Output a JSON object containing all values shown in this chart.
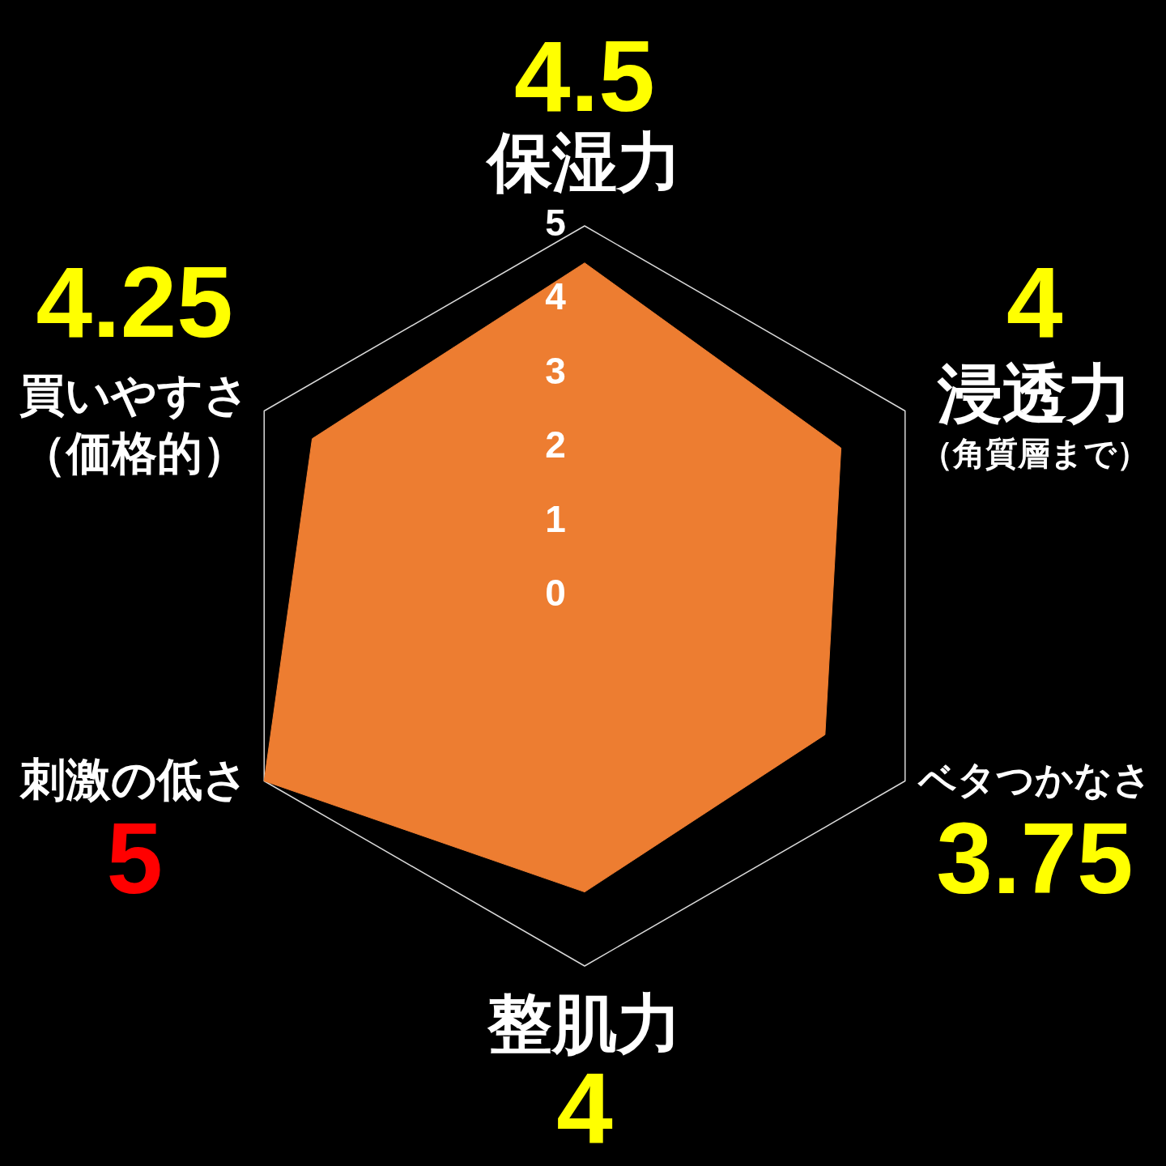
{
  "chart_data": {
    "type": "radar",
    "categories": [
      "保湿力",
      "浸透力（角質層まで）",
      "ベタつかなさ",
      "整肌力",
      "刺激の低さ",
      "買いやすさ（価格的）"
    ],
    "series": [
      {
        "color": "#ed7d31",
        "values": [
          4.5,
          4,
          3.75,
          4,
          5,
          4.25
        ]
      }
    ],
    "ylim": [
      0,
      5
    ],
    "yticks": [
      0,
      1,
      2,
      3,
      4,
      5
    ],
    "data_labels": true
  }
}
